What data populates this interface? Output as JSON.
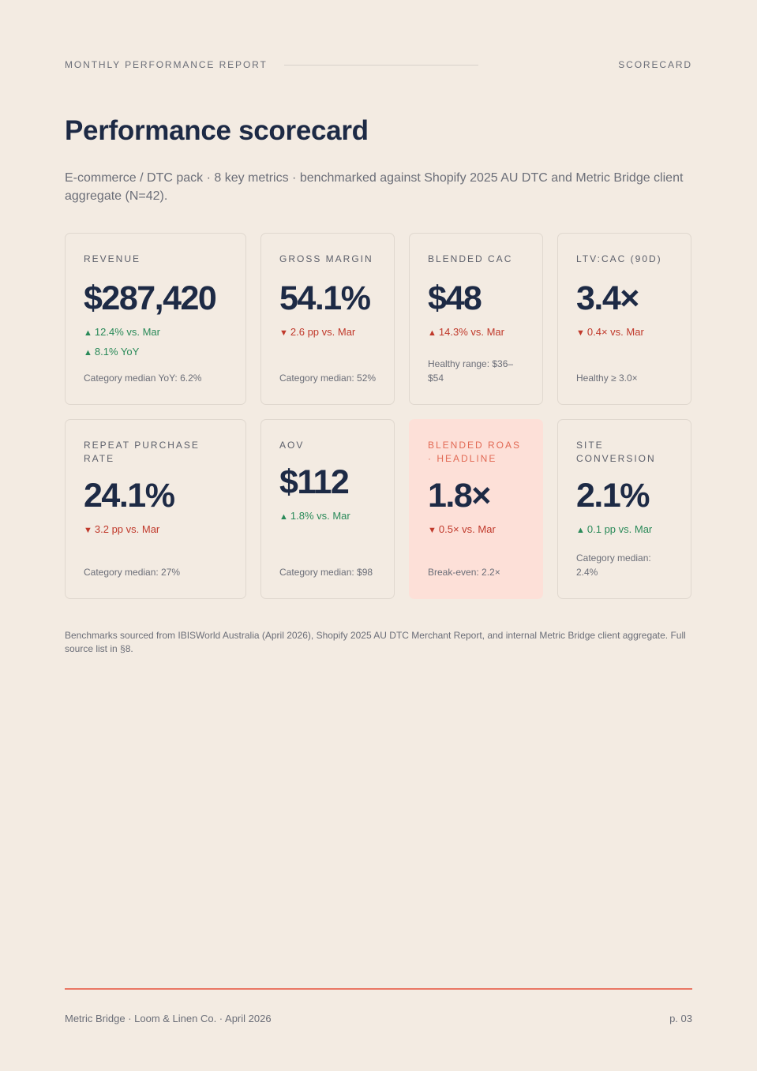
{
  "header": {
    "eyebrow": "MONTHLY PERFORMANCE REPORT",
    "section": "SCORECARD"
  },
  "title": "Performance scorecard",
  "subtitle": "E-commerce / DTC pack · 8 key metrics · benchmarked against Shopify 2025 AU DTC and Metric Bridge client aggregate (N=42).",
  "cards": [
    {
      "label": "REVENUE",
      "value": "$287,420",
      "deltas": [
        {
          "dir": "up",
          "text": "12.4% vs. Mar"
        },
        {
          "dir": "up",
          "text": "8.1% YoY"
        }
      ],
      "note": "Category median YoY: 6.2%",
      "highlight": false
    },
    {
      "label": "GROSS MARGIN",
      "value": "54.1%",
      "deltas": [
        {
          "dir": "down",
          "text": "2.6 pp vs. Mar"
        }
      ],
      "note": "Category median: 52%",
      "highlight": false
    },
    {
      "label": "BLENDED CAC",
      "value": "$48",
      "deltas": [
        {
          "dir": "up-bad",
          "text": "14.3% vs. Mar"
        }
      ],
      "note": "Healthy range: $36–$54",
      "highlight": false
    },
    {
      "label": "LTV:CAC (90D)",
      "value": "3.4×",
      "deltas": [
        {
          "dir": "down",
          "text": "0.4× vs. Mar"
        }
      ],
      "note": "Healthy ≥ 3.0×",
      "highlight": false
    },
    {
      "label": "REPEAT PURCHASE RATE",
      "value": "24.1%",
      "deltas": [
        {
          "dir": "down",
          "text": "3.2 pp vs. Mar"
        }
      ],
      "note": "Category median: 27%",
      "highlight": false
    },
    {
      "label": "AOV",
      "value": "$112",
      "deltas": [
        {
          "dir": "up",
          "text": "1.8% vs. Mar"
        }
      ],
      "note": "Category median: $98",
      "highlight": false
    },
    {
      "label": "BLENDED ROAS · HEADLINE",
      "value": "1.8×",
      "deltas": [
        {
          "dir": "down",
          "text": "0.5× vs. Mar"
        }
      ],
      "note": "Break-even: 2.2×",
      "highlight": true
    },
    {
      "label": "SITE CONVERSION",
      "value": "2.1%",
      "deltas": [
        {
          "dir": "up",
          "text": "0.1 pp vs. Mar"
        }
      ],
      "note": "Category median: 2.4%",
      "highlight": false
    }
  ],
  "footnote": "Benchmarks sourced from IBISWorld Australia (April 2026), Shopify 2025 AU DTC Merchant Report, and internal Metric Bridge client aggregate. Full source list in §8.",
  "footer": {
    "left": "Metric Bridge · Loom & Linen Co. · April 2026",
    "page": "p. 03"
  },
  "colors": {
    "background": "#f3ebe2",
    "accent": "#ea7764",
    "positive": "#2a8a59",
    "negative": "#c0392b",
    "highlight_card": "#fde0d8",
    "ink": "#1d2a45"
  }
}
